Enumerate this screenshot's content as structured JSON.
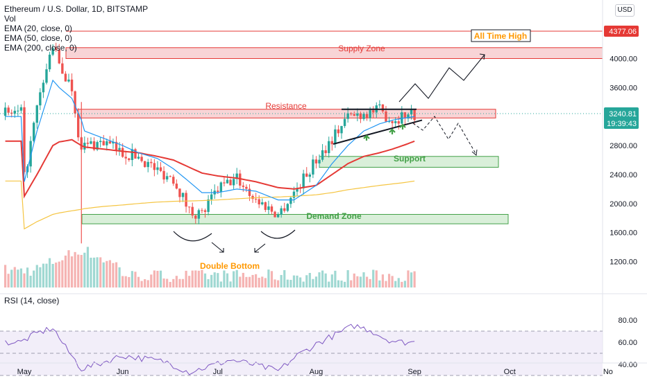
{
  "header": {
    "title": "Ethereum / U.S. Dollar, 1D, BITSTAMP",
    "indicators": [
      "Vol",
      "EMA (20, close, 0)",
      "EMA (50, close, 0)",
      "EMA (200, close, 0)"
    ],
    "currency_button": "USD"
  },
  "rsi_label": "RSI (14, close)",
  "colors": {
    "up": "#26a69a",
    "down": "#ef5350",
    "ema20": "#2196f3",
    "ema50": "#e53935",
    "ema200": "#f5c542",
    "rsi": "#7e57c2",
    "resistance_fill": "#f8d4d6",
    "support_fill": "#d9efd9",
    "zone_label_red": "#e53935",
    "zone_label_green": "#43a047",
    "double_bottom": "#ff9800",
    "ath_label": "#ff9800",
    "current_price_bg": "#26a69a",
    "ath_price_bg": "#e53935"
  },
  "chart_data": [
    {
      "type": "candlestick",
      "title": "Ethereum / U.S. Dollar, 1D, BITSTAMP",
      "x_ticks": [
        "May",
        "Jun",
        "Jul",
        "Aug",
        "Sep",
        "Oct",
        "No"
      ],
      "y_ticks": [
        1200,
        1600,
        2000,
        2400,
        2800,
        3200,
        3600,
        4000
      ],
      "y_tick_labels": [
        "1200.00",
        "1600.00",
        "2000.00",
        "2400.00",
        "2800.00",
        "3200.00",
        "3600.00",
        "4000.00"
      ],
      "ylim": [
        950,
        4450
      ],
      "scale": "linear",
      "grid": false,
      "current_price": "3240.81",
      "countdown": "19:39:43",
      "all_time_high_price": "4377.06",
      "ohlc_anchors": {
        "dates": [
          "2021-05-01",
          "2021-05-05",
          "2021-05-10",
          "2021-05-12",
          "2021-05-16",
          "2021-05-19",
          "2021-05-20",
          "2021-05-26",
          "2021-06-01",
          "2021-06-06",
          "2021-06-12",
          "2021-06-17",
          "2021-06-22",
          "2021-06-26",
          "2021-07-01",
          "2021-07-07",
          "2021-07-13",
          "2021-07-20",
          "2021-07-25",
          "2021-08-01",
          "2021-08-06",
          "2021-08-11",
          "2021-08-16",
          "2021-08-21",
          "2021-08-25",
          "2021-08-29",
          "2021-09-01"
        ],
        "close": [
          2350,
          3300,
          4200,
          3900,
          3600,
          2700,
          2800,
          2850,
          2700,
          2650,
          2450,
          2350,
          1900,
          1850,
          2200,
          2350,
          2050,
          1850,
          2150,
          2600,
          2900,
          3200,
          3250,
          3280,
          3150,
          3230,
          3240
        ]
      },
      "ema20_anchors": [
        2300,
        3000,
        3700,
        3600,
        3450,
        3150,
        3000,
        2900,
        2800,
        2700,
        2620,
        2480,
        2300,
        2150,
        2150,
        2200,
        2170,
        2050,
        2050,
        2250,
        2550,
        2800,
        3000,
        3100,
        3150,
        3180,
        3200
      ],
      "ema50_anchors": [
        2100,
        2400,
        2800,
        2850,
        2880,
        2800,
        2780,
        2750,
        2720,
        2700,
        2650,
        2600,
        2500,
        2420,
        2380,
        2350,
        2300,
        2220,
        2200,
        2250,
        2400,
        2550,
        2650,
        2700,
        2750,
        2810,
        2860
      ],
      "ema200_anchors": [
        1650,
        1750,
        1850,
        1870,
        1900,
        1920,
        1930,
        1960,
        1980,
        2000,
        2020,
        2030,
        2035,
        2040,
        2050,
        2065,
        2080,
        2090,
        2100,
        2120,
        2150,
        2190,
        2220,
        2250,
        2270,
        2290,
        2310
      ],
      "volume_relative_peak": "2021-05-19",
      "annotations": {
        "all_time_high": "All Time High",
        "supply_zone": "Supply Zone",
        "resistance": "Resistance",
        "support": "Support",
        "demand_zone": "Demand Zone",
        "double_bottom": "Double Bottom"
      },
      "zones": {
        "supply_zone": [
          4000,
          4150
        ],
        "resistance": [
          3180,
          3300
        ],
        "support": [
          2500,
          2650
        ],
        "demand_zone": [
          1720,
          1850
        ],
        "all_time_high": 4377.06
      }
    },
    {
      "type": "line",
      "title": "RSI (14, close)",
      "y_ticks": [
        40,
        60,
        80
      ],
      "y_tick_labels": [
        "40.00",
        "60.00",
        "80.00"
      ],
      "ylim": [
        30,
        85
      ],
      "band": [
        30,
        70
      ],
      "dates": [
        "2021-05-01",
        "2021-05-05",
        "2021-05-10",
        "2021-05-14",
        "2021-05-19",
        "2021-05-24",
        "2021-06-01",
        "2021-06-08",
        "2021-06-15",
        "2021-06-22",
        "2021-06-28",
        "2021-07-05",
        "2021-07-12",
        "2021-07-20",
        "2021-07-26",
        "2021-08-02",
        "2021-08-08",
        "2021-08-13",
        "2021-08-18",
        "2021-08-23",
        "2021-08-27",
        "2021-09-01"
      ],
      "values": [
        62,
        68,
        73,
        55,
        36,
        40,
        48,
        45,
        42,
        33,
        38,
        44,
        40,
        34,
        48,
        60,
        68,
        75,
        71,
        63,
        60,
        60
      ]
    }
  ]
}
